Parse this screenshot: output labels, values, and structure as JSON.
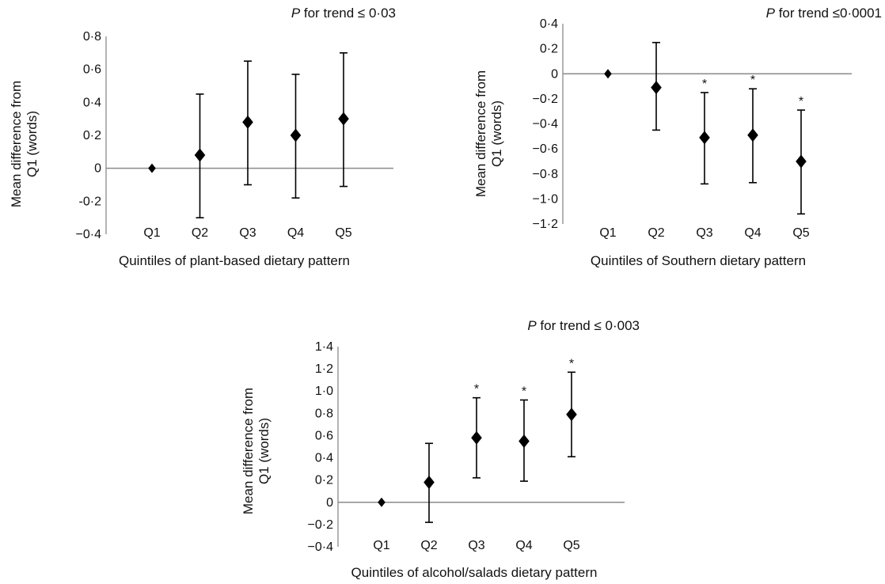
{
  "chart_data": [
    {
      "type": "scatter",
      "p_label": "P",
      "p_text": " for trend ≤ 0·03",
      "xlabel": "Quintiles of plant-based dietary pattern",
      "ylabel_line1": "Mean difference from",
      "ylabel_line2": "Q1 (words)",
      "categories": [
        "Q1",
        "Q2",
        "Q3",
        "Q4",
        "Q5"
      ],
      "ylim": [
        -0.4,
        0.8
      ],
      "yticks": [
        -0.4,
        -0.2,
        0,
        0.2,
        0.4,
        0.6,
        0.8
      ],
      "ytick_labels": [
        "−0·4",
        "-0·2",
        "0",
        "0·2",
        "0·4",
        "0·6",
        "0·8"
      ],
      "values": [
        0,
        0.08,
        0.28,
        0.2,
        0.3
      ],
      "error_lower": [
        0,
        -0.3,
        -0.1,
        -0.18,
        -0.11
      ],
      "error_upper": [
        0,
        0.45,
        0.65,
        0.57,
        0.7
      ],
      "significance": [
        "",
        "",
        "",
        "",
        ""
      ]
    },
    {
      "type": "scatter",
      "p_label": "P",
      "p_text": " for trend ≤0·0001",
      "xlabel": "Quintiles of Southern dietary pattern",
      "ylabel_line1": "Mean difference from",
      "ylabel_line2": "Q1 (words)",
      "categories": [
        "Q1",
        "Q2",
        "Q3",
        "Q4",
        "Q5"
      ],
      "ylim": [
        -1.2,
        0.4
      ],
      "yticks": [
        -1.2,
        -1.0,
        -0.8,
        -0.6,
        -0.4,
        -0.2,
        0,
        0.2,
        0.4
      ],
      "ytick_labels": [
        "−1·2",
        "−1·0",
        "−0·8",
        "−0·6",
        "−0·4",
        "−0·2",
        "0",
        "0·2",
        "0·4"
      ],
      "values": [
        0,
        -0.11,
        -0.51,
        -0.49,
        -0.7
      ],
      "error_lower": [
        0,
        -0.45,
        -0.88,
        -0.87,
        -1.12
      ],
      "error_upper": [
        0,
        0.25,
        -0.15,
        -0.12,
        -0.29
      ],
      "significance": [
        "",
        "",
        "*",
        "*",
        "*"
      ]
    },
    {
      "type": "scatter",
      "p_label": "P",
      "p_text": " for trend ≤ 0·003",
      "xlabel": "Quintiles of alcohol/salads dietary pattern",
      "ylabel_line1": "Mean difference from",
      "ylabel_line2": "Q1 (words)",
      "categories": [
        "Q1",
        "Q2",
        "Q3",
        "Q4",
        "Q5"
      ],
      "ylim": [
        -0.4,
        1.4
      ],
      "yticks": [
        -0.4,
        -0.2,
        0,
        0.2,
        0.4,
        0.6,
        0.8,
        1.0,
        1.2,
        1.4
      ],
      "ytick_labels": [
        "−0·4",
        "−0·2",
        "0",
        "0·2",
        "0·4",
        "0·6",
        "0·8",
        "1·0",
        "1·2",
        "1·4"
      ],
      "values": [
        0,
        0.18,
        0.58,
        0.55,
        0.79
      ],
      "error_lower": [
        0,
        -0.18,
        0.22,
        0.19,
        0.41
      ],
      "error_upper": [
        0,
        0.53,
        0.94,
        0.92,
        1.17
      ],
      "significance": [
        "",
        "",
        "*",
        "*",
        "*"
      ]
    }
  ]
}
